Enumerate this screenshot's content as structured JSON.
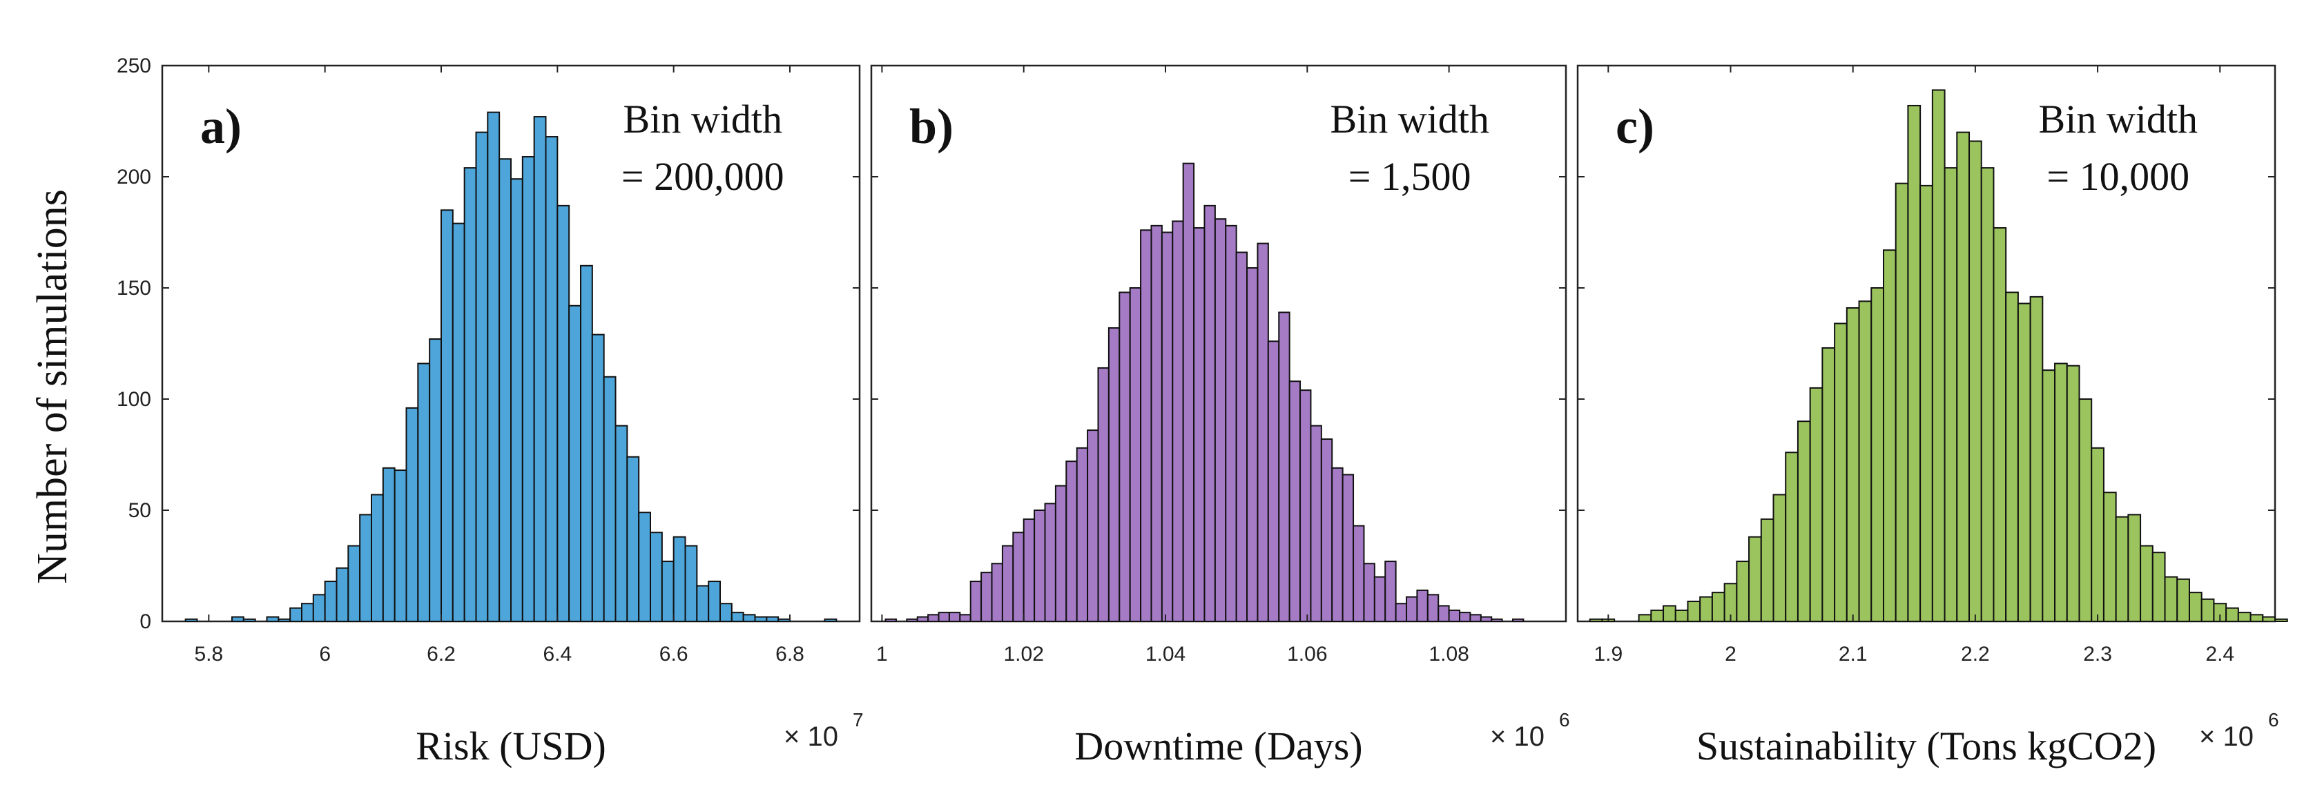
{
  "chart_data": {
    "type": "histogram",
    "shared_ylabel": "Number of simulations",
    "panels": [
      {
        "id": "a",
        "panel_label": "a)",
        "xlabel": "Risk (USD)",
        "multiplier": {
          "base": "× 10",
          "exponent": "7"
        },
        "bin_note": [
          "Bin width",
          "= 200,000"
        ],
        "color": "#4ea5d9",
        "xlim": [
          5.72,
          6.92
        ],
        "xticks": [
          5.8,
          6,
          6.2,
          6.4,
          6.6,
          6.8
        ],
        "ylim": [
          0,
          250
        ],
        "yticks": [
          0,
          50,
          100,
          150,
          200,
          250
        ],
        "bin_start": 5.76,
        "bin_width": 0.02,
        "counts": [
          1,
          0,
          0,
          0,
          2,
          1,
          0,
          2,
          1,
          6,
          8,
          12,
          18,
          24,
          34,
          48,
          57,
          69,
          68,
          96,
          116,
          127,
          185,
          179,
          204,
          220,
          229,
          208,
          199,
          209,
          227,
          218,
          187,
          142,
          160,
          129,
          110,
          88,
          74,
          49,
          40,
          27,
          38,
          34,
          16,
          18,
          8,
          4,
          3,
          2,
          2,
          1,
          0,
          0,
          0,
          1
        ]
      },
      {
        "id": "b",
        "panel_label": "b)",
        "xlabel": "Downtime (Days)",
        "multiplier": {
          "base": "× 10",
          "exponent": "6"
        },
        "bin_note": [
          "Bin width",
          "= 1,500"
        ],
        "color": "#a57bc6",
        "xlim": [
          0.9985,
          1.0965
        ],
        "xticks": [
          1,
          1.02,
          1.04,
          1.06,
          1.08
        ],
        "ylim": [
          0,
          250
        ],
        "yticks": [
          0,
          50,
          100,
          150,
          200,
          250
        ],
        "bin_start": 1.0005,
        "bin_width": 0.0015,
        "counts": [
          1,
          0,
          1,
          2,
          3,
          4,
          4,
          3,
          18,
          22,
          26,
          34,
          40,
          46,
          50,
          53,
          61,
          72,
          78,
          86,
          114,
          132,
          148,
          150,
          176,
          178,
          175,
          180,
          206,
          177,
          187,
          181,
          178,
          166,
          159,
          170,
          126,
          139,
          108,
          104,
          88,
          82,
          69,
          66,
          43,
          26,
          20,
          27,
          8,
          11,
          14,
          12,
          7,
          5,
          4,
          3,
          2,
          1,
          0,
          1
        ]
      },
      {
        "id": "c",
        "panel_label": "c)",
        "xlabel": "Sustainability (Tons kgCO2)",
        "multiplier": {
          "base": "× 10",
          "exponent": "6"
        },
        "bin_note": [
          "Bin width",
          "= 10,000"
        ],
        "color": "#9bc35e",
        "xlim": [
          1.875,
          2.445
        ],
        "xticks": [
          1.9,
          2,
          2.1,
          2.2,
          2.3,
          2.4
        ],
        "ylim": [
          0,
          250
        ],
        "yticks": [
          0,
          50,
          100,
          150,
          200,
          250
        ],
        "bin_start": 1.885,
        "bin_width": 0.01,
        "counts": [
          1,
          1,
          0,
          0,
          3,
          5,
          7,
          5,
          9,
          11,
          13,
          17,
          27,
          38,
          46,
          57,
          76,
          90,
          105,
          123,
          134,
          141,
          144,
          150,
          167,
          197,
          232,
          196,
          239,
          204,
          220,
          216,
          204,
          177,
          148,
          143,
          146,
          113,
          116,
          115,
          100,
          78,
          58,
          47,
          48,
          34,
          31,
          20,
          19,
          13,
          10,
          8,
          6,
          4,
          3,
          2,
          1
        ]
      }
    ]
  }
}
